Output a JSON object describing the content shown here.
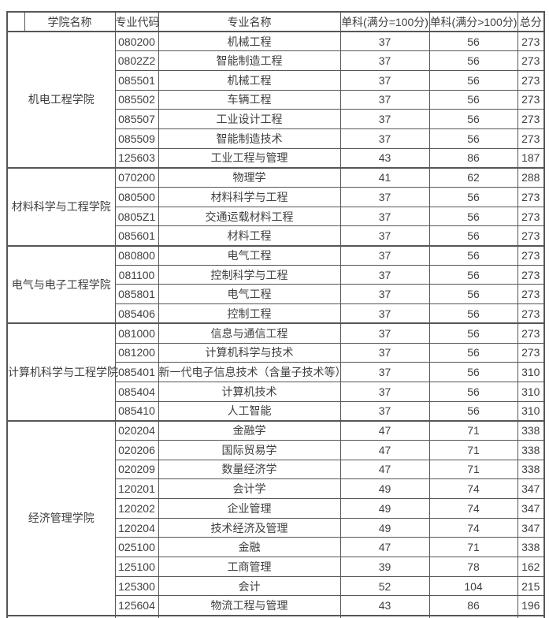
{
  "table": {
    "headers": [
      "学院名称",
      "专业代码",
      "专业名称",
      "单科(满分=100分)",
      "单科(满分>100分)",
      "总分"
    ],
    "groups": [
      {
        "college": "机电工程学院",
        "rows": [
          [
            "080200",
            "机械工程",
            "37",
            "56",
            "273"
          ],
          [
            "0802Z2",
            "智能制造工程",
            "37",
            "56",
            "273"
          ],
          [
            "085501",
            "机械工程",
            "37",
            "56",
            "273"
          ],
          [
            "085502",
            "车辆工程",
            "37",
            "56",
            "273"
          ],
          [
            "085507",
            "工业设计工程",
            "37",
            "56",
            "273"
          ],
          [
            "085509",
            "智能制造技术",
            "37",
            "56",
            "273"
          ],
          [
            "125603",
            "工业工程与管理",
            "43",
            "86",
            "187"
          ]
        ]
      },
      {
        "college": "材料科学与工程学院",
        "rows": [
          [
            "070200",
            "物理学",
            "41",
            "62",
            "288"
          ],
          [
            "080500",
            "材料科学与工程",
            "37",
            "56",
            "273"
          ],
          [
            "0805Z1",
            "交通运载材料工程",
            "37",
            "56",
            "273"
          ],
          [
            "085601",
            "材料工程",
            "37",
            "56",
            "273"
          ]
        ]
      },
      {
        "college": "电气与电子工程学院",
        "rows": [
          [
            "080800",
            "电气工程",
            "37",
            "56",
            "273"
          ],
          [
            "081100",
            "控制科学与工程",
            "37",
            "56",
            "273"
          ],
          [
            "085801",
            "电气工程",
            "37",
            "56",
            "273"
          ],
          [
            "085406",
            "控制工程",
            "37",
            "56",
            "273"
          ]
        ]
      },
      {
        "college": "计算机科学与工程学院",
        "rows": [
          [
            "081000",
            "信息与通信工程",
            "37",
            "56",
            "273"
          ],
          [
            "081200",
            "计算机科学与技术",
            "37",
            "56",
            "273"
          ],
          [
            "085401",
            "新一代电子信息技术（含量子技术等）",
            "37",
            "56",
            "310"
          ],
          [
            "085404",
            "计算机技术",
            "37",
            "56",
            "310"
          ],
          [
            "085410",
            "人工智能",
            "37",
            "56",
            "310"
          ]
        ]
      },
      {
        "college": "经济管理学院",
        "rows": [
          [
            "020204",
            "金融学",
            "47",
            "71",
            "338"
          ],
          [
            "020206",
            "国际贸易学",
            "47",
            "71",
            "338"
          ],
          [
            "020209",
            "数量经济学",
            "47",
            "71",
            "338"
          ],
          [
            "120201",
            "会计学",
            "49",
            "74",
            "347"
          ],
          [
            "120202",
            "企业管理",
            "49",
            "74",
            "347"
          ],
          [
            "120204",
            "技术经济及管理",
            "49",
            "74",
            "347"
          ],
          [
            "025100",
            "金融",
            "47",
            "71",
            "338"
          ],
          [
            "125100",
            "工商管理",
            "39",
            "78",
            "162"
          ],
          [
            "125300",
            "会计",
            "52",
            "104",
            "215"
          ],
          [
            "125604",
            "物流工程与管理",
            "43",
            "86",
            "196"
          ]
        ]
      }
    ]
  }
}
